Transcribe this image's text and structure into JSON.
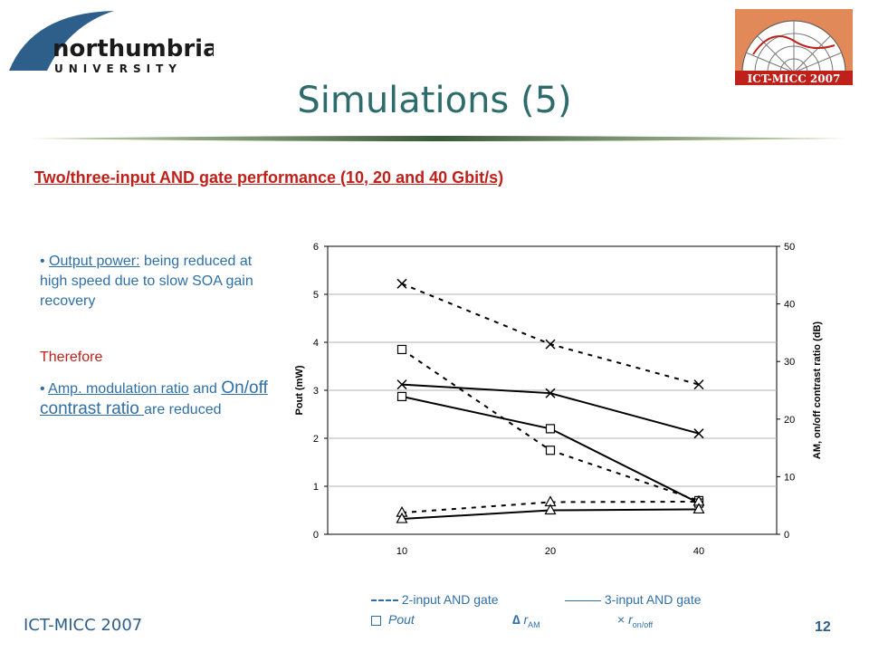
{
  "header": {
    "logo_name": "northumbria",
    "logo_sub": "UNIVERSITY",
    "conf_logo_text": "ICT-MICC 2007",
    "title": "Simulations (5)"
  },
  "subtitle": "Two/three-input AND gate performance (10, 20 and 40 Gbit/s)",
  "bullets": {
    "b1_label": "Output power:",
    "b1_text": " being reduced at high speed due to slow SOA gain recovery",
    "therefore": "Therefore",
    "b2_label": "Amp. modulation ratio",
    "b2_and": " and ",
    "b2_label2": "On/off contrast ratio ",
    "b2_text": "are reduced"
  },
  "chart_data": {
    "type": "line",
    "categories": [
      "10",
      "20",
      "40"
    ],
    "y_left": {
      "label": "Pout (mW)",
      "range": [
        0,
        6
      ],
      "ticks": [
        "0",
        "1",
        "2",
        "3",
        "4",
        "5",
        "6"
      ]
    },
    "y_right": {
      "label": "AM, on/off contrast ratio (dB)",
      "range": [
        0,
        50
      ],
      "ticks": [
        "0",
        "10",
        "20",
        "30",
        "40",
        "50"
      ]
    },
    "grid": "horizontal",
    "series": [
      {
        "name": "Pout",
        "gate": "2-input",
        "marker": "square",
        "axis": "left",
        "values": [
          3.85,
          1.75,
          0.7
        ]
      },
      {
        "name": "Pout",
        "gate": "3-input",
        "marker": "square",
        "axis": "left",
        "values": [
          2.87,
          2.2,
          0.65
        ]
      },
      {
        "name": "r_AM",
        "gate": "2-input",
        "marker": "triangle",
        "axis": "left",
        "values": [
          0.45,
          0.67,
          0.68
        ]
      },
      {
        "name": "r_AM",
        "gate": "3-input",
        "marker": "triangle",
        "axis": "left",
        "values": [
          0.32,
          0.5,
          0.52
        ]
      },
      {
        "name": "r_on/off",
        "gate": "2-input",
        "marker": "cross",
        "axis": "right",
        "values": [
          43.5,
          33,
          26
        ]
      },
      {
        "name": "r_on/off",
        "gate": "3-input",
        "marker": "cross",
        "axis": "right",
        "values": [
          26,
          24.5,
          17.5
        ]
      }
    ],
    "legend": {
      "gate2": "2-input AND gate",
      "gate3": "3-input AND gate",
      "pout": "Pout",
      "ram": "r",
      "ram_sub": "AM",
      "ron": "r",
      "ron_sub": "on/off"
    }
  },
  "footer": {
    "conference": "ICT-MICC 2007",
    "page": "12"
  }
}
